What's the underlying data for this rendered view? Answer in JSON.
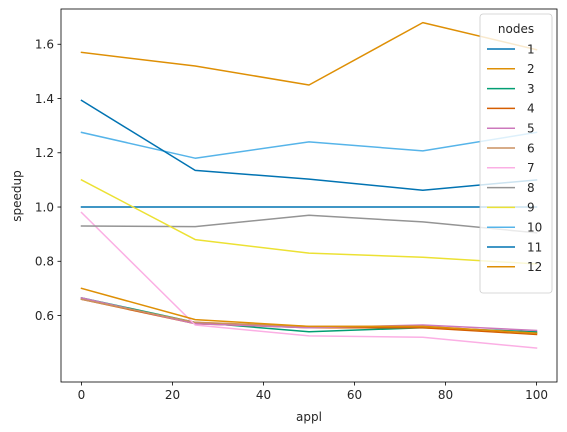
{
  "chart_data": {
    "type": "line",
    "title": "",
    "xlabel": "appl",
    "ylabel": "speedup",
    "xlim": [
      -4.5,
      104.5
    ],
    "ylim": [
      0.355,
      1.73
    ],
    "xticks": [
      "0",
      "20",
      "40",
      "60",
      "80",
      "100"
    ],
    "yticks": [
      "0.6",
      "0.8",
      "1.0",
      "1.2",
      "1.4",
      "1.6"
    ],
    "x": [
      0,
      25,
      50,
      75,
      100
    ],
    "grid": false,
    "legend": {
      "title": "nodes",
      "position": "upper right"
    },
    "series": [
      {
        "name": "1",
        "color": "#0173b2",
        "values": [
          1.0,
          1.0,
          1.0,
          1.0,
          1.0
        ]
      },
      {
        "name": "2",
        "color": "#de8f05",
        "values": [
          1.57,
          1.52,
          1.45,
          1.68,
          1.58
        ]
      },
      {
        "name": "3",
        "color": "#029e73",
        "values": [
          0.665,
          0.575,
          0.54,
          0.555,
          0.54
        ]
      },
      {
        "name": "4",
        "color": "#d55e00",
        "values": [
          0.66,
          0.57,
          0.555,
          0.555,
          0.53
        ]
      },
      {
        "name": "5",
        "color": "#cc78bc",
        "values": [
          0.665,
          0.57,
          0.555,
          0.565,
          0.545
        ]
      },
      {
        "name": "6",
        "color": "#ca9161",
        "values": [
          0.66,
          0.575,
          0.56,
          0.56,
          0.535
        ]
      },
      {
        "name": "7",
        "color": "#fbafe4",
        "values": [
          0.98,
          0.565,
          0.525,
          0.52,
          0.48
        ]
      },
      {
        "name": "8",
        "color": "#949494",
        "values": [
          0.93,
          0.928,
          0.97,
          0.945,
          0.905
        ]
      },
      {
        "name": "9",
        "color": "#ece133",
        "values": [
          1.1,
          0.88,
          0.83,
          0.815,
          0.79
        ]
      },
      {
        "name": "10",
        "color": "#56b4e9",
        "values": [
          1.275,
          1.18,
          1.24,
          1.207,
          1.275
        ]
      },
      {
        "name": "11",
        "color": "#0173b2",
        "values": [
          1.393,
          1.135,
          1.103,
          1.062,
          1.1
        ]
      },
      {
        "name": "12",
        "color": "#de8f05",
        "values": [
          0.7,
          0.585,
          0.56,
          0.56,
          0.535
        ]
      }
    ]
  }
}
